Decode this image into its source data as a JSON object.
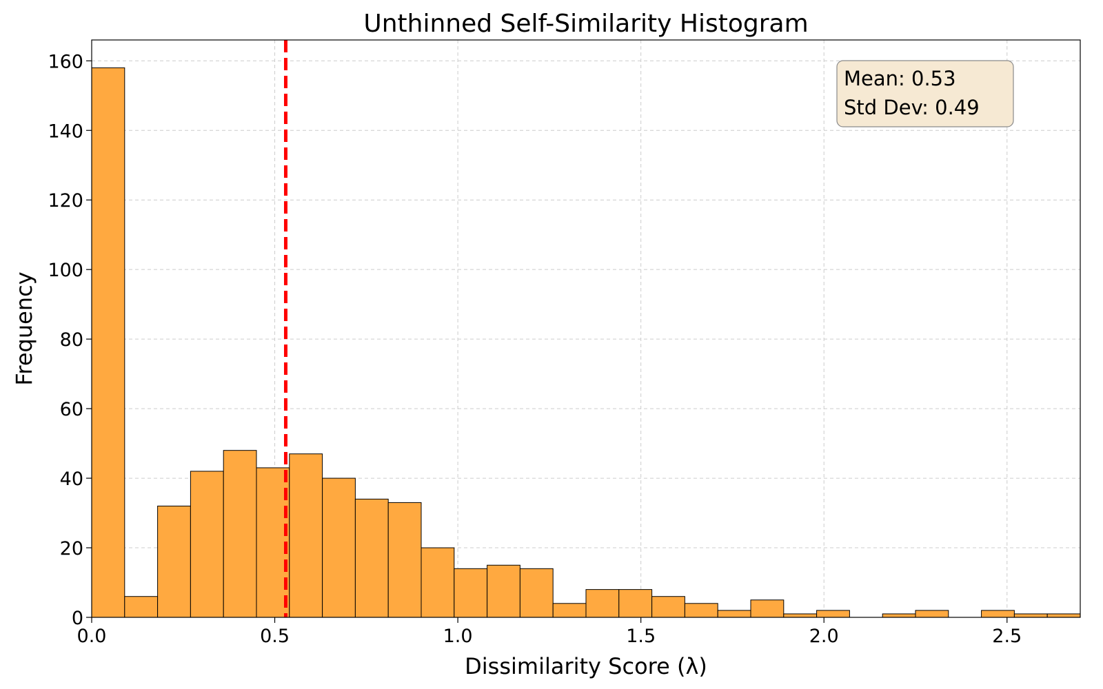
{
  "chart_data": {
    "type": "bar",
    "title": "Unthinned Self-Similarity Histogram",
    "xlabel": "Dissimilarity Score (λ)",
    "ylabel": "Frequency",
    "xlim": [
      0.0,
      2.7
    ],
    "ylim": [
      0,
      166
    ],
    "x_ticks": [
      {
        "value": 0.0,
        "label": "0.0"
      },
      {
        "value": 0.5,
        "label": "0.5"
      },
      {
        "value": 1.0,
        "label": "1.0"
      },
      {
        "value": 1.5,
        "label": "1.5"
      },
      {
        "value": 2.0,
        "label": "2.0"
      },
      {
        "value": 2.5,
        "label": "2.5"
      }
    ],
    "y_ticks": [
      {
        "value": 0,
        "label": "0"
      },
      {
        "value": 20,
        "label": "20"
      },
      {
        "value": 40,
        "label": "40"
      },
      {
        "value": 60,
        "label": "60"
      },
      {
        "value": 80,
        "label": "80"
      },
      {
        "value": 100,
        "label": "100"
      },
      {
        "value": 120,
        "label": "120"
      },
      {
        "value": 140,
        "label": "140"
      },
      {
        "value": 160,
        "label": "160"
      }
    ],
    "grid": true,
    "bin_start": 0.0,
    "bin_width": 0.09,
    "values": [
      158,
      6,
      32,
      42,
      48,
      43,
      47,
      40,
      34,
      33,
      20,
      14,
      15,
      14,
      4,
      8,
      8,
      6,
      4,
      2,
      5,
      1,
      2,
      0,
      1,
      2,
      0,
      2,
      1,
      1
    ],
    "mean_line": {
      "value": 0.53,
      "color": "#ff0000",
      "style": "dashed"
    },
    "stats_box": {
      "lines": [
        "Mean: 0.53",
        "Std Dev: 0.49"
      ],
      "placement": "top-right"
    },
    "colors": {
      "bar_fill": "#ffa940",
      "bar_edge": "#000000",
      "grid": "#cccccc",
      "stats_bg": "#f6e9d3",
      "stats_border": "#8a8a8a"
    }
  }
}
